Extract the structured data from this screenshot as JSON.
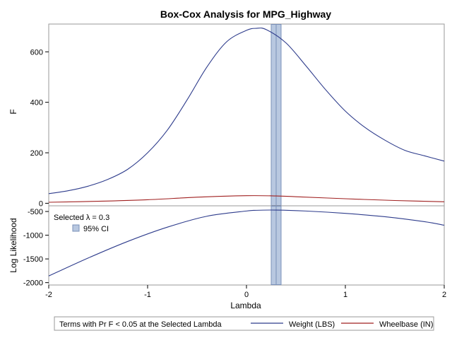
{
  "chart_data": {
    "type": "line",
    "title": "Box-Cox Analysis for MPG_Highway",
    "xlabel": "Lambda",
    "xlim": [
      -2,
      2
    ],
    "x_ticks": [
      {
        "v": -2,
        "label": "-2"
      },
      {
        "v": -1,
        "label": "-1"
      },
      {
        "v": 0,
        "label": "0"
      },
      {
        "v": 1,
        "label": "1"
      },
      {
        "v": 2,
        "label": "2"
      }
    ],
    "selected_lambda": 0.3,
    "ci": [
      0.25,
      0.35
    ],
    "ci_color": "#B8C8E0",
    "ci_border": "#7A90B8",
    "top_panel": {
      "ylabel": "F",
      "ylim": [
        -10,
        710
      ],
      "y_ticks": [
        {
          "v": 0,
          "label": "0"
        },
        {
          "v": 200,
          "label": "200"
        },
        {
          "v": 400,
          "label": "400"
        },
        {
          "v": 600,
          "label": "600"
        }
      ],
      "series": [
        {
          "name": "Weight (LBS)",
          "color": "#2E3C8C",
          "x": [
            -2,
            -1.8,
            -1.6,
            -1.4,
            -1.2,
            -1.0,
            -0.8,
            -0.6,
            -0.4,
            -0.2,
            0,
            0.1,
            0.2,
            0.4,
            0.6,
            0.8,
            1.0,
            1.2,
            1.4,
            1.6,
            1.8,
            2.0
          ],
          "y": [
            38,
            50,
            68,
            95,
            135,
            200,
            290,
            410,
            540,
            640,
            685,
            693,
            688,
            635,
            545,
            450,
            365,
            300,
            250,
            210,
            188,
            167
          ]
        },
        {
          "name": "Wheelbase (IN)",
          "color": "#A02020",
          "x": [
            -2,
            -1.5,
            -1.0,
            -0.5,
            0,
            0.3,
            0.5,
            1.0,
            1.5,
            2.0
          ],
          "y": [
            4,
            8,
            14,
            24,
            30,
            29,
            26,
            18,
            11,
            6
          ]
        }
      ]
    },
    "bottom_panel": {
      "ylabel": "Log Likelihood",
      "ylim": [
        -2050,
        -380
      ],
      "y_ticks": [
        {
          "v": -500,
          "label": "-500"
        },
        {
          "v": -1000,
          "label": "-1000"
        },
        {
          "v": -1500,
          "label": "-1500"
        },
        {
          "v": -2000,
          "label": "-2000"
        }
      ],
      "series": [
        {
          "name": "Log Likelihood",
          "color": "#2E3C8C",
          "x": [
            -2,
            -1.6,
            -1.2,
            -0.8,
            -0.4,
            0,
            0.1,
            0.3,
            0.6,
            1.0,
            1.4,
            1.8,
            2.0
          ],
          "y": [
            -1860,
            -1480,
            -1130,
            -830,
            -600,
            -490,
            -475,
            -470,
            -490,
            -540,
            -610,
            -715,
            -790
          ]
        }
      ],
      "inset_legend": {
        "selected_label": "Selected λ = 0.3",
        "ci_label": "95% CI"
      }
    },
    "legend": {
      "placement": "bottom",
      "title": "Terms with Pr F < 0.05 at the Selected Lambda",
      "items": [
        {
          "label": "Weight (LBS)",
          "color": "#2E3C8C"
        },
        {
          "label": "Wheelbase (IN)",
          "color": "#A02020"
        }
      ]
    }
  }
}
